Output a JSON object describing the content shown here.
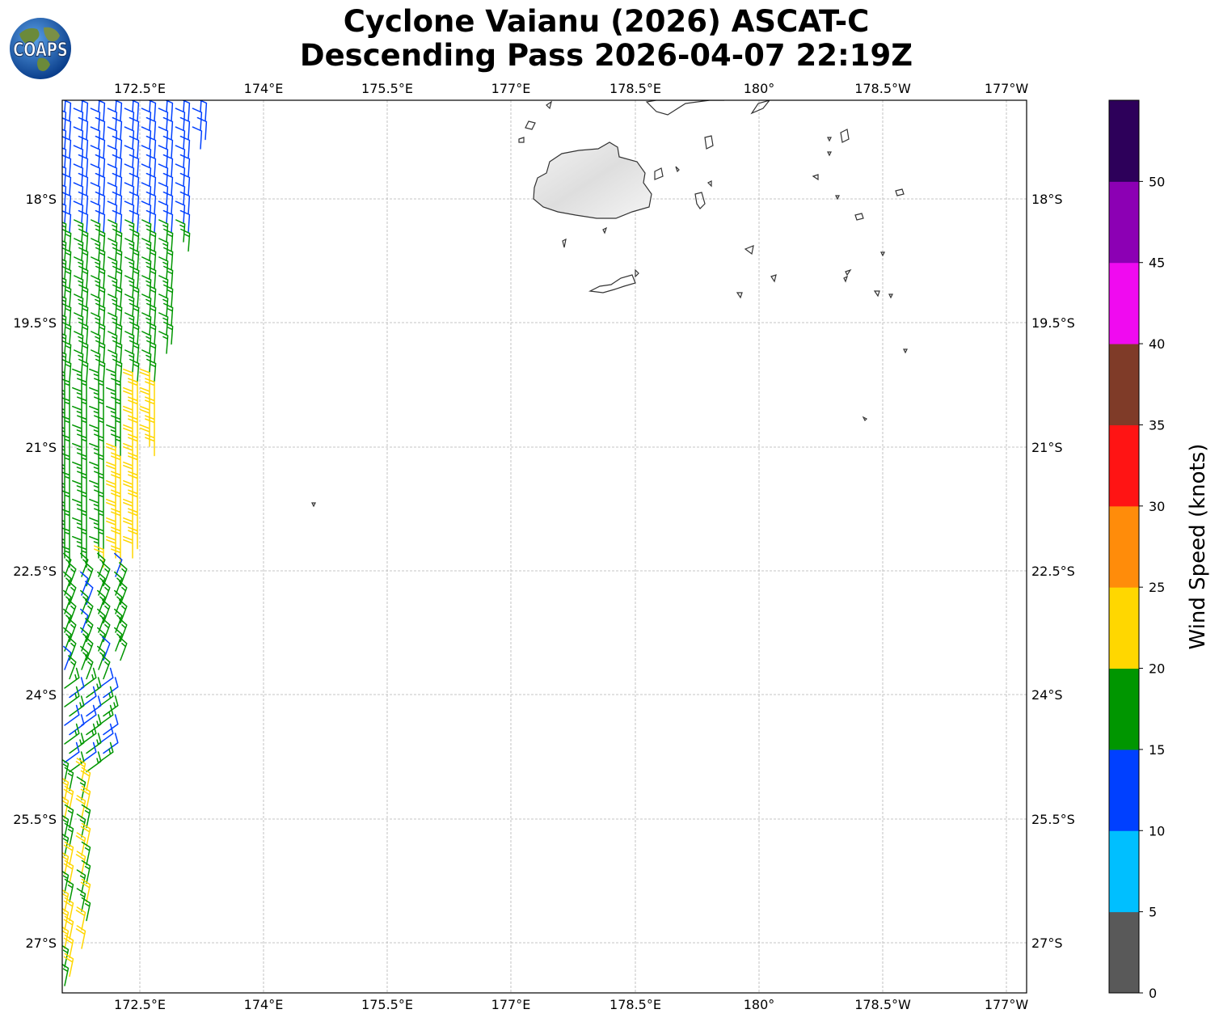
{
  "title": {
    "line1": "Cyclone Vaianu (2026) ASCAT-C",
    "line2": "Descending Pass 2026-04-07 22:19Z"
  },
  "logo": {
    "text": "COAPS",
    "icon": "globe-icon"
  },
  "map": {
    "lon_ticks": [
      "172.5°E",
      "174°E",
      "175.5°E",
      "177°E",
      "178.5°E",
      "180°",
      "178.5°W",
      "177°W"
    ],
    "lat_ticks": [
      "18°S",
      "19.5°S",
      "21°S",
      "22.5°S",
      "24°S",
      "25.5°S",
      "27°S"
    ],
    "gridlines": true
  },
  "colorbar": {
    "label": "Wind Speed (knots)",
    "ticks": [
      "0",
      "5",
      "10",
      "15",
      "20",
      "25",
      "30",
      "35",
      "40",
      "45",
      "50"
    ],
    "colors": [
      "#595959",
      "#00bfff",
      "#0040ff",
      "#009600",
      "#ffd700",
      "#ff8c0a",
      "#ff1414",
      "#7f3b28",
      "#f00af0",
      "#8c00b4",
      "#2d005a"
    ]
  }
}
